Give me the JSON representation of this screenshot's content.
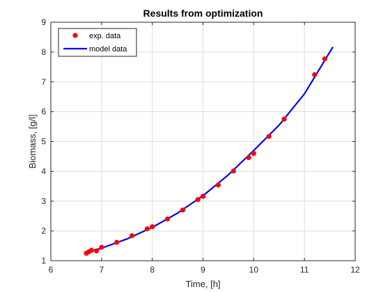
{
  "chart_data": {
    "type": "scatter",
    "title": "Results from optimization",
    "xlabel": "Time, [h]",
    "ylabel": "Biomass, [g/l]",
    "xlim": [
      6,
      12
    ],
    "ylim": [
      1,
      9
    ],
    "xticks": [
      "6",
      "7",
      "8",
      "9",
      "10",
      "11",
      "12"
    ],
    "yticks": [
      "1",
      "2",
      "3",
      "4",
      "5",
      "6",
      "7",
      "8",
      "9"
    ],
    "grid": true,
    "legend_position": "top-left",
    "series": [
      {
        "name": "exp. data",
        "style": "markers",
        "color": "#ff0000",
        "x": [
          6.7,
          6.75,
          6.8,
          6.9,
          7.0,
          7.3,
          7.6,
          7.9,
          8.0,
          8.3,
          8.6,
          8.9,
          9.0,
          9.3,
          9.6,
          9.9,
          10.0,
          10.3,
          10.6,
          11.2,
          11.4
        ],
        "y": [
          1.25,
          1.3,
          1.35,
          1.33,
          1.45,
          1.62,
          1.84,
          2.07,
          2.14,
          2.4,
          2.7,
          3.05,
          3.16,
          3.54,
          4.01,
          4.46,
          4.6,
          5.17,
          5.75,
          7.24,
          7.77
        ]
      },
      {
        "name": "model data",
        "style": "line",
        "color": "#0000ff",
        "x": [
          6.7,
          7.0,
          7.5,
          8.0,
          8.5,
          9.0,
          9.5,
          10.0,
          10.5,
          11.0,
          11.56
        ],
        "y": [
          1.28,
          1.42,
          1.73,
          2.12,
          2.6,
          3.18,
          3.88,
          4.7,
          5.55,
          6.6,
          8.17
        ]
      }
    ]
  }
}
